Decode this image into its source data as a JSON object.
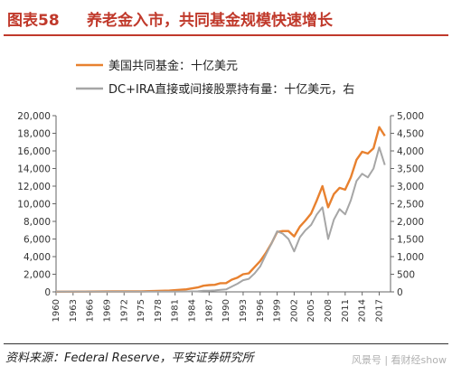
{
  "header": {
    "figure_number": "图表58",
    "title": "养老金入市，共同基金规模快速增长"
  },
  "footer": {
    "source": "资料来源：Federal Reserve，平安证券研究所",
    "watermark": "风景号 | 看财经show"
  },
  "colors": {
    "accent": "#c0392b",
    "series_orange": "#e8812f",
    "series_gray": "#a6a6a6",
    "axis": "#666666"
  },
  "chart_data": {
    "type": "line",
    "title": "养老金入市，共同基金规模快速增长",
    "grid": false,
    "legend_position": "top-left",
    "x_ticks": [
      "1960",
      "1963",
      "1966",
      "1969",
      "1972",
      "1975",
      "1978",
      "1981",
      "1984",
      "1987",
      "1990",
      "1993",
      "1996",
      "1999",
      "2002",
      "2005",
      "2008",
      "2011",
      "2014",
      "2017"
    ],
    "xlim": [
      1960,
      2019
    ],
    "y_left": {
      "label": "",
      "ylim": [
        0,
        20000
      ],
      "ticks": [
        "0",
        "2,000",
        "4,000",
        "6,000",
        "8,000",
        "10,000",
        "12,000",
        "14,000",
        "16,000",
        "18,000",
        "20,000"
      ]
    },
    "y_right": {
      "label": "",
      "ylim": [
        0,
        5000
      ],
      "ticks": [
        "0",
        "500",
        "1,000",
        "1,500",
        "2,000",
        "2,500",
        "3,000",
        "3,500",
        "4,000",
        "4,500",
        "5,000"
      ]
    },
    "series": [
      {
        "name": "美国共同基金：十亿美元",
        "axis": "left",
        "color": "#e8812f",
        "x": [
          1960,
          1965,
          1970,
          1975,
          1980,
          1983,
          1985,
          1986,
          1987,
          1988,
          1989,
          1990,
          1991,
          1992,
          1993,
          1994,
          1995,
          1996,
          1997,
          1998,
          1999,
          2000,
          2001,
          2002,
          2003,
          2004,
          2005,
          2006,
          2007,
          2008,
          2009,
          2010,
          2011,
          2012,
          2013,
          2014,
          2015,
          2016,
          2017,
          2018
        ],
        "values": [
          20,
          35,
          50,
          50,
          140,
          290,
          500,
          700,
          770,
          800,
          980,
          1000,
          1380,
          1620,
          2000,
          2100,
          2800,
          3500,
          4400,
          5500,
          6800,
          6900,
          6900,
          6300,
          7400,
          8100,
          8900,
          10400,
          12000,
          9600,
          11100,
          11800,
          11600,
          13000,
          15000,
          15900,
          15700,
          16300,
          18700,
          17700
        ]
      },
      {
        "name": "DC+IRA直接或间接股票持有量：十亿美元，右",
        "axis": "right",
        "color": "#a6a6a6",
        "x": [
          1960,
          1965,
          1970,
          1975,
          1980,
          1983,
          1985,
          1986,
          1987,
          1988,
          1989,
          1990,
          1991,
          1992,
          1993,
          1994,
          1995,
          1996,
          1997,
          1998,
          1999,
          2000,
          2001,
          2002,
          2003,
          2004,
          2005,
          2006,
          2007,
          2008,
          2009,
          2010,
          2011,
          2012,
          2013,
          2014,
          2015,
          2016,
          2017,
          2018
        ],
        "values": [
          5,
          5,
          5,
          5,
          5,
          10,
          15,
          30,
          30,
          40,
          60,
          70,
          150,
          230,
          330,
          370,
          520,
          720,
          1050,
          1370,
          1720,
          1650,
          1500,
          1150,
          1550,
          1750,
          1900,
          2200,
          2400,
          1500,
          2050,
          2350,
          2200,
          2600,
          3150,
          3350,
          3250,
          3500,
          4100,
          3600
        ]
      }
    ]
  }
}
